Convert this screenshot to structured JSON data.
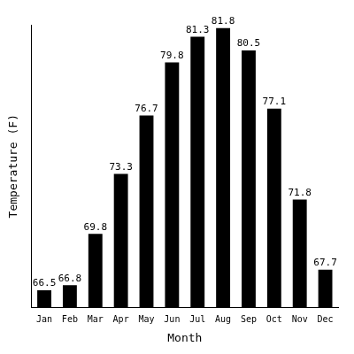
{
  "chart_data": {
    "type": "bar",
    "x_label": "Month",
    "y_label": "Temperature (F)",
    "categories": [
      "Jan",
      "Feb",
      "Mar",
      "Apr",
      "May",
      "Jun",
      "Jul",
      "Aug",
      "Sep",
      "Oct",
      "Nov",
      "Dec"
    ],
    "values": [
      66.5,
      66.8,
      69.8,
      73.3,
      76.7,
      79.8,
      81.3,
      81.8,
      80.5,
      77.1,
      71.8,
      67.7
    ],
    "color": "#000000",
    "ylim": [
      65.5,
      82
    ],
    "grid": false,
    "data_labels": true,
    "tick_labels": "x"
  }
}
